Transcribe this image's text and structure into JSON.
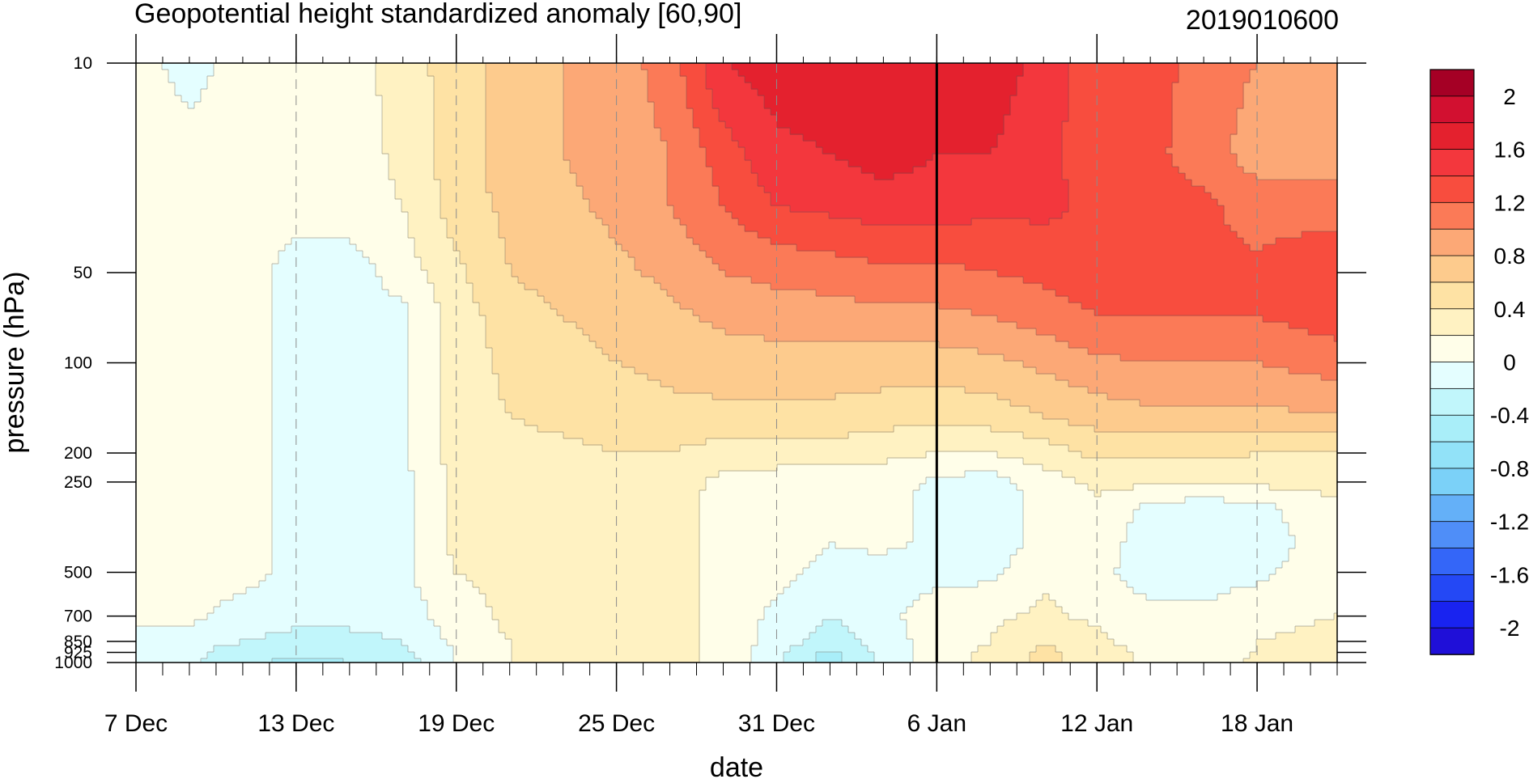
{
  "chart_data": {
    "type": "heatmap",
    "subtype": "filled-contour time-pressure cross-section",
    "title": "Geopotential height standardized anomaly [60,90]",
    "date_label": "2019010600",
    "xlabel": "date",
    "ylabel": "pressure (hPa)",
    "x_range": [
      "7 Dec",
      "21 Jan"
    ],
    "x_ticks": [
      "7 Dec",
      "13 Dec",
      "19 Dec",
      "25 Dec",
      "31 Dec",
      "6 Jan",
      "12 Jan",
      "18 Jan"
    ],
    "y_scale": "log",
    "y_range": [
      1000,
      10
    ],
    "y_ticks": [
      10,
      50,
      100,
      200,
      250,
      500,
      700,
      850,
      925,
      1000
    ],
    "y_tick_labels": [
      "10",
      "50",
      "100",
      "200",
      "250",
      "500",
      "700",
      "850",
      "925",
      "1000"
    ],
    "reference_line": "6 Jan",
    "gridlines": "dashed vertical at labeled dates",
    "colorbar": {
      "placement": "right",
      "levels": [
        -2.2,
        -2,
        -1.8,
        -1.6,
        -1.4,
        -1.2,
        -1,
        -0.8,
        -0.6,
        -0.4,
        -0.2,
        0,
        0.2,
        0.4,
        0.6,
        0.8,
        1,
        1.2,
        1.4,
        1.6,
        1.8,
        2,
        2.2
      ],
      "colors": [
        "#1f0fd8",
        "#1923f0",
        "#2448f5",
        "#3466f8",
        "#4f8ef8",
        "#64b0f8",
        "#7bd1f8",
        "#92e2f8",
        "#a9eef9",
        "#c1f6fb",
        "#e4feff",
        "#fffee9",
        "#fff2c2",
        "#fee2a4",
        "#fdcb8d",
        "#fca876",
        "#fb7a57",
        "#f84d3e",
        "#f3373d",
        "#e4212e",
        "#d21030",
        "#a50025"
      ],
      "labels": [
        "2",
        "1.6",
        "1.2",
        "0.8",
        "0.4",
        "0",
        "-0.4",
        "-0.8",
        "-1.2",
        "-1.6",
        "-2"
      ]
    },
    "grid_columns": [
      "7 Dec",
      "9 Dec",
      "11 Dec",
      "13 Dec",
      "15 Dec",
      "17 Dec",
      "19 Dec",
      "21 Dec",
      "23 Dec",
      "25 Dec",
      "27 Dec",
      "29 Dec",
      "31 Dec",
      "2 Jan",
      "4 Jan",
      "6 Jan",
      "8 Jan",
      "10 Jan",
      "12 Jan",
      "14 Jan",
      "16 Jan",
      "18 Jan",
      "21 Jan"
    ],
    "grid_rows_hPa": [
      10,
      20,
      30,
      50,
      70,
      100,
      150,
      200,
      250,
      300,
      400,
      500,
      700,
      850,
      925,
      1000
    ],
    "values": [
      [
        0.1,
        -0.1,
        0.1,
        0.1,
        0.1,
        0.3,
        0.5,
        0.7,
        0.8,
        0.9,
        1.1,
        1.6,
        1.7,
        1.75,
        1.8,
        1.7,
        1.75,
        1.5,
        1.3,
        1.3,
        1.1,
        1.0,
        1.0
      ],
      [
        0.1,
        0.1,
        0.1,
        0.1,
        0.1,
        0.25,
        0.5,
        0.7,
        0.8,
        0.9,
        1.0,
        1.3,
        1.55,
        1.6,
        1.7,
        1.6,
        1.6,
        1.45,
        1.3,
        1.25,
        1.1,
        0.9,
        0.9
      ],
      [
        0.1,
        0.1,
        0.1,
        0.1,
        0.1,
        0.2,
        0.5,
        0.65,
        0.75,
        0.85,
        1.0,
        1.2,
        1.4,
        1.45,
        1.5,
        1.5,
        1.45,
        1.45,
        1.35,
        1.3,
        1.25,
        1.1,
        1.1
      ],
      [
        0.1,
        0.1,
        0.1,
        -0.1,
        -0.1,
        0.1,
        0.35,
        0.6,
        0.7,
        0.75,
        0.85,
        1.0,
        1.05,
        1.1,
        1.15,
        1.15,
        1.2,
        1.25,
        1.3,
        1.25,
        1.25,
        1.25,
        1.4
      ],
      [
        0.1,
        0.1,
        0.1,
        -0.1,
        -0.1,
        -0.05,
        0.3,
        0.5,
        0.6,
        0.65,
        0.75,
        0.85,
        0.9,
        0.9,
        0.95,
        0.95,
        1.0,
        1.1,
        1.2,
        1.2,
        1.2,
        1.2,
        1.3
      ],
      [
        0.1,
        0.1,
        0.1,
        -0.1,
        -0.1,
        -0.05,
        0.3,
        0.45,
        0.55,
        0.6,
        0.65,
        0.7,
        0.7,
        0.7,
        0.7,
        0.7,
        0.75,
        0.85,
        0.95,
        1.0,
        1.0,
        1.0,
        1.1
      ],
      [
        0.1,
        0.1,
        0.1,
        -0.1,
        -0.1,
        -0.05,
        0.3,
        0.4,
        0.45,
        0.5,
        0.55,
        0.55,
        0.55,
        0.55,
        0.5,
        0.45,
        0.5,
        0.6,
        0.7,
        0.75,
        0.75,
        0.75,
        0.8
      ],
      [
        0.1,
        0.1,
        0.1,
        -0.1,
        -0.1,
        -0.05,
        0.3,
        0.35,
        0.35,
        0.4,
        0.4,
        0.3,
        0.3,
        0.3,
        0.25,
        0.2,
        0.2,
        0.3,
        0.45,
        0.45,
        0.45,
        0.4,
        0.4
      ],
      [
        0.1,
        0.1,
        0.1,
        -0.1,
        -0.1,
        -0.05,
        0.25,
        0.3,
        0.3,
        0.35,
        0.3,
        0.15,
        0.1,
        0.1,
        0.1,
        -0.05,
        -0.1,
        0.1,
        0.25,
        0.25,
        0.25,
        0.25,
        0.3
      ],
      [
        0.1,
        0.1,
        0.1,
        -0.1,
        -0.1,
        -0.05,
        0.25,
        0.3,
        0.3,
        0.3,
        0.25,
        0.15,
        0.1,
        0.1,
        0.05,
        -0.05,
        -0.1,
        0.05,
        0.15,
        -0.05,
        -0.1,
        -0.05,
        0.15
      ],
      [
        0.1,
        0.1,
        0.1,
        -0.1,
        -0.1,
        -0.05,
        0.25,
        0.3,
        0.3,
        0.3,
        0.25,
        0.15,
        0.1,
        0.0,
        0.05,
        -0.05,
        -0.1,
        0.05,
        0.1,
        -0.1,
        -0.1,
        -0.1,
        0.1
      ],
      [
        0.1,
        0.1,
        0.1,
        -0.1,
        -0.1,
        -0.05,
        0.2,
        0.25,
        0.25,
        0.3,
        0.25,
        0.15,
        0.05,
        -0.05,
        -0.1,
        -0.05,
        -0.05,
        0.15,
        0.05,
        -0.1,
        -0.1,
        -0.05,
        0.15
      ],
      [
        0.1,
        0.05,
        -0.1,
        -0.15,
        -0.15,
        -0.1,
        0.1,
        0.25,
        0.25,
        0.25,
        0.25,
        0.15,
        -0.05,
        -0.2,
        -0.05,
        0.1,
        0.15,
        0.25,
        0.15,
        0.05,
        0.05,
        0.15,
        0.2
      ],
      [
        -0.1,
        -0.1,
        -0.2,
        -0.25,
        -0.25,
        -0.2,
        0.05,
        0.2,
        0.25,
        0.25,
        0.25,
        0.15,
        -0.1,
        -0.3,
        -0.1,
        0.1,
        0.2,
        0.4,
        0.25,
        0.1,
        0.1,
        0.2,
        0.25
      ],
      [
        -0.1,
        -0.15,
        -0.3,
        -0.35,
        -0.35,
        -0.25,
        0.0,
        0.2,
        0.25,
        0.25,
        0.25,
        0.15,
        -0.15,
        -0.45,
        -0.15,
        0.1,
        0.25,
        0.45,
        0.3,
        0.15,
        0.1,
        0.2,
        0.3
      ],
      [
        -0.1,
        -0.15,
        -0.35,
        -0.45,
        -0.4,
        -0.3,
        0.0,
        0.2,
        0.25,
        0.25,
        0.25,
        0.15,
        -0.15,
        -0.5,
        -0.15,
        0.1,
        0.25,
        0.45,
        0.3,
        0.15,
        0.1,
        0.25,
        0.4
      ]
    ]
  }
}
